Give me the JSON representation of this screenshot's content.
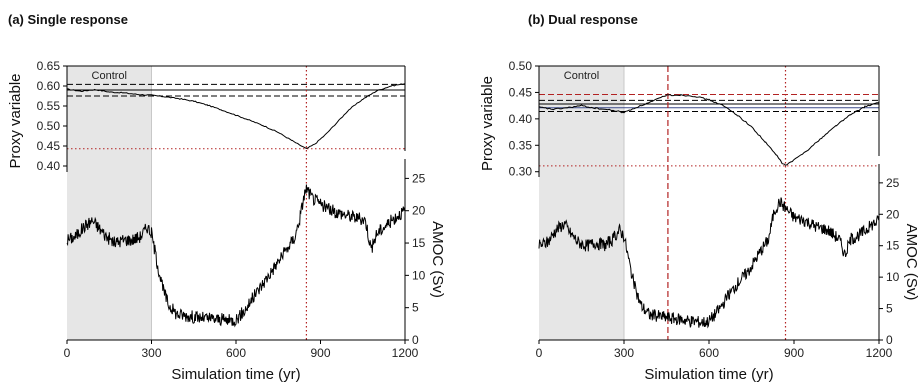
{
  "chart_data": [
    {
      "type": "line",
      "title": "(a) Single response",
      "shaded_region": {
        "x": [
          0,
          300
        ],
        "label": "Control",
        "color": "#e6e6e6"
      },
      "xlabel": "Simulation time (yr)",
      "xlim": [
        0,
        1200
      ],
      "xticks": [
        0,
        300,
        600,
        900,
        1200
      ],
      "proxy": {
        "ylabel": "Proxy variable",
        "ylim": [
          0.385,
          0.65
        ],
        "yticks": [
          "0.40",
          "0.45",
          "0.50",
          "0.55",
          "0.60",
          "0.65"
        ],
        "series": {
          "x": [
            0,
            50,
            100,
            150,
            200,
            250,
            300,
            350,
            400,
            450,
            500,
            550,
            600,
            650,
            700,
            750,
            800,
            820,
            850,
            880,
            920,
            960,
            1000,
            1050,
            1100,
            1150,
            1200
          ],
          "y": [
            0.592,
            0.587,
            0.591,
            0.585,
            0.583,
            0.579,
            0.577,
            0.573,
            0.568,
            0.562,
            0.552,
            0.54,
            0.527,
            0.514,
            0.5,
            0.484,
            0.463,
            0.455,
            0.443,
            0.455,
            0.48,
            0.51,
            0.54,
            0.567,
            0.588,
            0.6,
            0.606
          ]
        },
        "hlines": [
          {
            "y": 0.59,
            "style": "solid",
            "color": "#000000"
          },
          {
            "y": 0.604,
            "style": "dashed",
            "color": "#000000"
          },
          {
            "y": 0.575,
            "style": "dashed",
            "color": "#000000"
          },
          {
            "y": 0.443,
            "style": "dotted",
            "color": "#b22222"
          }
        ]
      },
      "amoc": {
        "ylabel": "AMOC (Sv)",
        "ylim": [
          0,
          28
        ],
        "yticks": [
          0,
          5,
          10,
          15,
          20,
          25
        ],
        "series": {
          "x": [
            0,
            30,
            60,
            90,
            110,
            140,
            170,
            200,
            230,
            260,
            285,
            300,
            320,
            340,
            360,
            390,
            420,
            460,
            500,
            540,
            580,
            600,
            630,
            660,
            700,
            740,
            780,
            810,
            830,
            840,
            850,
            870,
            900,
            940,
            980,
            1020,
            1060,
            1080,
            1100,
            1140,
            1180,
            1200
          ],
          "y": [
            15.5,
            16.0,
            17.5,
            18.5,
            17.5,
            16.0,
            15.0,
            15.5,
            15.5,
            16.0,
            17.5,
            16.5,
            12.0,
            8.0,
            5.5,
            4.0,
            3.8,
            3.5,
            3.3,
            3.2,
            3.0,
            3.2,
            4.5,
            6.5,
            9.0,
            11.5,
            14.0,
            16.0,
            19.5,
            22.0,
            23.5,
            22.0,
            21.0,
            20.0,
            19.5,
            19.0,
            18.5,
            14.0,
            16.5,
            18.0,
            19.5,
            20.0
          ]
        }
      },
      "vlines": [
        {
          "x": 850,
          "style": "dotted",
          "color": "#b22222"
        }
      ]
    },
    {
      "type": "line",
      "title": "(b) Dual response",
      "shaded_region": {
        "x": [
          0,
          300
        ],
        "label": "Control",
        "color": "#e6e6e6"
      },
      "xlabel": "Simulation time (yr)",
      "xlim": [
        0,
        1200
      ],
      "xticks": [
        0,
        300,
        600,
        900,
        1200
      ],
      "proxy": {
        "ylabel": "Proxy variable",
        "ylim": [
          0.29,
          0.5
        ],
        "yticks": [
          "0.30",
          "0.35",
          "0.40",
          "0.45",
          "0.50"
        ],
        "series": {
          "x": [
            0,
            50,
            100,
            150,
            200,
            250,
            300,
            350,
            400,
            450,
            500,
            550,
            600,
            650,
            700,
            750,
            800,
            840,
            860,
            870,
            900,
            950,
            1000,
            1050,
            1100,
            1150,
            1200
          ],
          "y": [
            0.422,
            0.418,
            0.421,
            0.425,
            0.42,
            0.417,
            0.412,
            0.423,
            0.433,
            0.445,
            0.445,
            0.443,
            0.436,
            0.425,
            0.407,
            0.385,
            0.355,
            0.33,
            0.315,
            0.312,
            0.322,
            0.342,
            0.365,
            0.388,
            0.408,
            0.423,
            0.431
          ]
        },
        "hlines": [
          {
            "y": 0.428,
            "style": "solid",
            "color": "#000000"
          },
          {
            "y": 0.421,
            "style": "solid",
            "color": "#3b4a8a"
          },
          {
            "y": 0.435,
            "style": "dashed",
            "color": "#000000"
          },
          {
            "y": 0.414,
            "style": "dashed",
            "color": "#000000"
          },
          {
            "y": 0.446,
            "style": "dashed",
            "color": "#b22222"
          },
          {
            "y": 0.311,
            "style": "dotted",
            "color": "#b22222"
          }
        ]
      },
      "amoc": {
        "ylabel": "AMOC (Sv)",
        "ylim": [
          0,
          28
        ],
        "yticks": [
          0,
          5,
          10,
          15,
          20,
          25
        ],
        "series": {
          "x": [
            0,
            30,
            60,
            90,
            110,
            140,
            170,
            200,
            230,
            260,
            285,
            300,
            320,
            340,
            360,
            390,
            420,
            460,
            500,
            540,
            580,
            600,
            630,
            660,
            700,
            740,
            780,
            810,
            830,
            850,
            870,
            900,
            940,
            980,
            1020,
            1060,
            1080,
            1100,
            1140,
            1180,
            1200
          ],
          "y": [
            15.0,
            15.5,
            17.5,
            18.5,
            17.0,
            15.5,
            15.0,
            15.5,
            15.0,
            16.0,
            17.5,
            16.5,
            12.0,
            8.0,
            5.5,
            4.0,
            3.8,
            3.5,
            3.3,
            3.0,
            2.8,
            3.0,
            4.5,
            6.5,
            9.0,
            11.0,
            14.0,
            16.0,
            20.5,
            22.0,
            21.0,
            19.5,
            19.0,
            18.0,
            17.5,
            16.0,
            13.5,
            16.0,
            17.0,
            18.5,
            19.0
          ]
        }
      },
      "vlines": [
        {
          "x": 455,
          "style": "dashed",
          "color": "#b22222"
        },
        {
          "x": 870,
          "style": "dotted",
          "color": "#b22222"
        }
      ]
    }
  ]
}
